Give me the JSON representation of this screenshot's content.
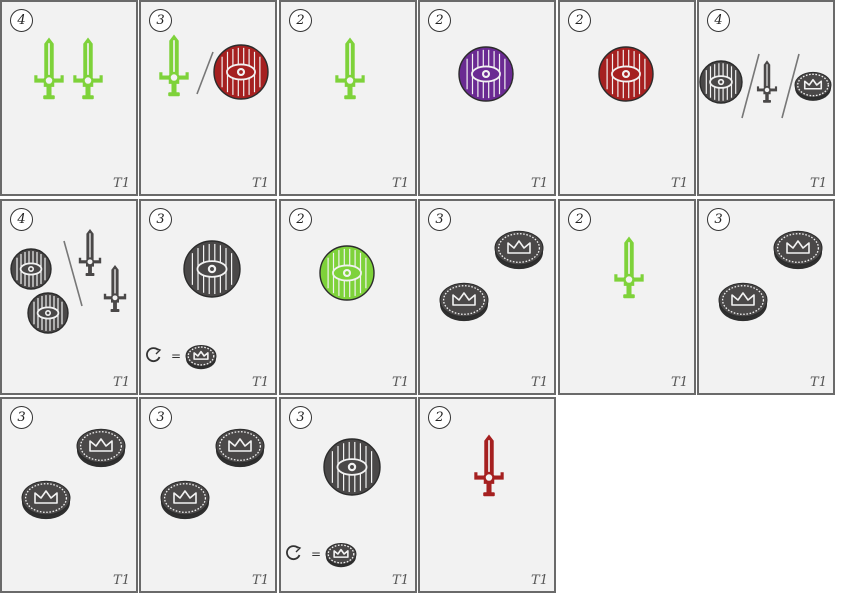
{
  "colors": {
    "green": "#7ed23a",
    "red": "#a52020",
    "purple": "#6a2a92",
    "dark": "#4a4848",
    "card_bg": "#f2f2f2",
    "card_border": "#6a6a6a"
  },
  "cards": [
    {
      "cost": "4",
      "tier": "T1",
      "layout": "two-swords",
      "color": "green"
    },
    {
      "cost": "3",
      "tier": "T1",
      "layout": "sword-or-shield",
      "color": "green",
      "color2": "red"
    },
    {
      "cost": "2",
      "tier": "T1",
      "layout": "sword",
      "color": "green"
    },
    {
      "cost": "2",
      "tier": "T1",
      "layout": "shield",
      "color": "purple"
    },
    {
      "cost": "2",
      "tier": "T1",
      "layout": "shield",
      "color": "red"
    },
    {
      "cost": "4",
      "tier": "T1",
      "layout": "shield-or-sword-or-coin",
      "color": "dark"
    },
    {
      "cost": "4",
      "tier": "T1",
      "layout": "two-shields-or-two-swords",
      "color": "dark"
    },
    {
      "cost": "3",
      "tier": "T1",
      "layout": "shield-with-ability",
      "color": "dark",
      "ability": "="
    },
    {
      "cost": "2",
      "tier": "T1",
      "layout": "shield",
      "color": "green"
    },
    {
      "cost": "3",
      "tier": "T1",
      "layout": "two-coins",
      "color": "dark"
    },
    {
      "cost": "2",
      "tier": "T1",
      "layout": "sword",
      "color": "green"
    },
    {
      "cost": "3",
      "tier": "T1",
      "layout": "two-coins",
      "color": "dark"
    },
    {
      "cost": "3",
      "tier": "T1",
      "layout": "two-coins",
      "color": "dark"
    },
    {
      "cost": "3",
      "tier": "T1",
      "layout": "two-coins",
      "color": "dark"
    },
    {
      "cost": "3",
      "tier": "T1",
      "layout": "shield-with-ability",
      "color": "dark",
      "ability": "="
    },
    {
      "cost": "2",
      "tier": "T1",
      "layout": "sword",
      "color": "red"
    }
  ]
}
